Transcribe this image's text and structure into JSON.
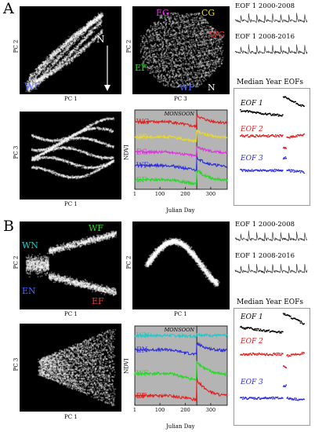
{
  "panels": {
    "A": "A",
    "B": "B"
  },
  "panelA": {
    "scatter1": {
      "x": "PC 1",
      "y": "PC 2"
    },
    "scatter2": {
      "x": "PC 3",
      "y": "PC 2"
    },
    "scatter3": {
      "x": "PC 1",
      "y": "PC 3"
    },
    "labels1": {
      "wf": "WF",
      "n": "N"
    },
    "labels2": {
      "eg": "EG",
      "cg": "CG",
      "wg": "WG",
      "ef": "EF",
      "wf": "WF",
      "n": "N"
    },
    "eof_2000": "EOF 1 2000-2008",
    "eof_2008": "EOF 1 2008-2016",
    "median_title": "Median Year EOFs",
    "median": [
      "EOF 1",
      "EOF 2",
      "EOF 3"
    ]
  },
  "panelB": {
    "scatter1": {
      "x": "PC 1",
      "y": "PC 2"
    },
    "scatter2": {
      "x": "PC 1",
      "y": "PC 2"
    },
    "scatter3": {
      "x": "PC 1",
      "y": "PC 3"
    },
    "labels1": {
      "wf": "WF",
      "wn": "WN",
      "en": "EN",
      "ef": "EF"
    },
    "eof_2000": "EOF 1 2000-2008",
    "eof_2008": "EOF 1 2008-2016",
    "median_title": "Median Year EOFs",
    "median": [
      "EOF 1",
      "EOF 2",
      "EOF 3"
    ]
  },
  "colors": {
    "red": "#e02020",
    "yellow": "#e8d82a",
    "magenta": "#e030e0",
    "blue": "#2c2ce0",
    "green": "#26d826",
    "cyan": "#20c8c8",
    "black": "#000000"
  },
  "chart_data": [
    {
      "type": "line",
      "id": "A-ndvi",
      "title": "MONSOON",
      "xlabel": "Julian Day",
      "ylabel": "NDVI",
      "xlim": [
        1,
        365
      ],
      "xticks": [
        "1",
        "100",
        "200",
        "300"
      ],
      "monsoon_day": 245,
      "series": [
        {
          "name": "WG",
          "color": "#e02020",
          "level": 0.85,
          "dip": 0.06,
          "rise": 0.1
        },
        {
          "name": "CG",
          "color": "#e8d82a",
          "level": 0.66,
          "dip": 0.05,
          "rise": 0.1
        },
        {
          "name": "EG",
          "color": "#e030e0",
          "level": 0.47,
          "dip": 0.05,
          "rise": 0.09
        },
        {
          "name": "WF",
          "color": "#2c2ce0",
          "level": 0.3,
          "dip": 0.06,
          "rise": 0.12
        },
        {
          "name": "EF",
          "color": "#26d826",
          "level": 0.12,
          "dip": 0.05,
          "rise": 0.14
        }
      ]
    },
    {
      "type": "line",
      "id": "B-ndvi",
      "title": "MONSOON",
      "xlabel": "Julian Day",
      "ylabel": "NDVI",
      "xlim": [
        1,
        365
      ],
      "xticks": [
        "1",
        "100",
        "200",
        "300"
      ],
      "monsoon_day": 245,
      "series": [
        {
          "name": "WN",
          "color": "#20c8c8",
          "level": 0.88,
          "dip": 0.01,
          "rise": 0.02
        },
        {
          "name": "EN",
          "color": "#2c2ce0",
          "level": 0.7,
          "dip": 0.06,
          "rise": 0.1
        },
        {
          "name": "WF",
          "color": "#26d826",
          "level": 0.4,
          "dip": 0.08,
          "rise": 0.18
        },
        {
          "name": "EF",
          "color": "#e02020",
          "level": 0.12,
          "dip": 0.05,
          "rise": 0.22
        }
      ]
    }
  ]
}
